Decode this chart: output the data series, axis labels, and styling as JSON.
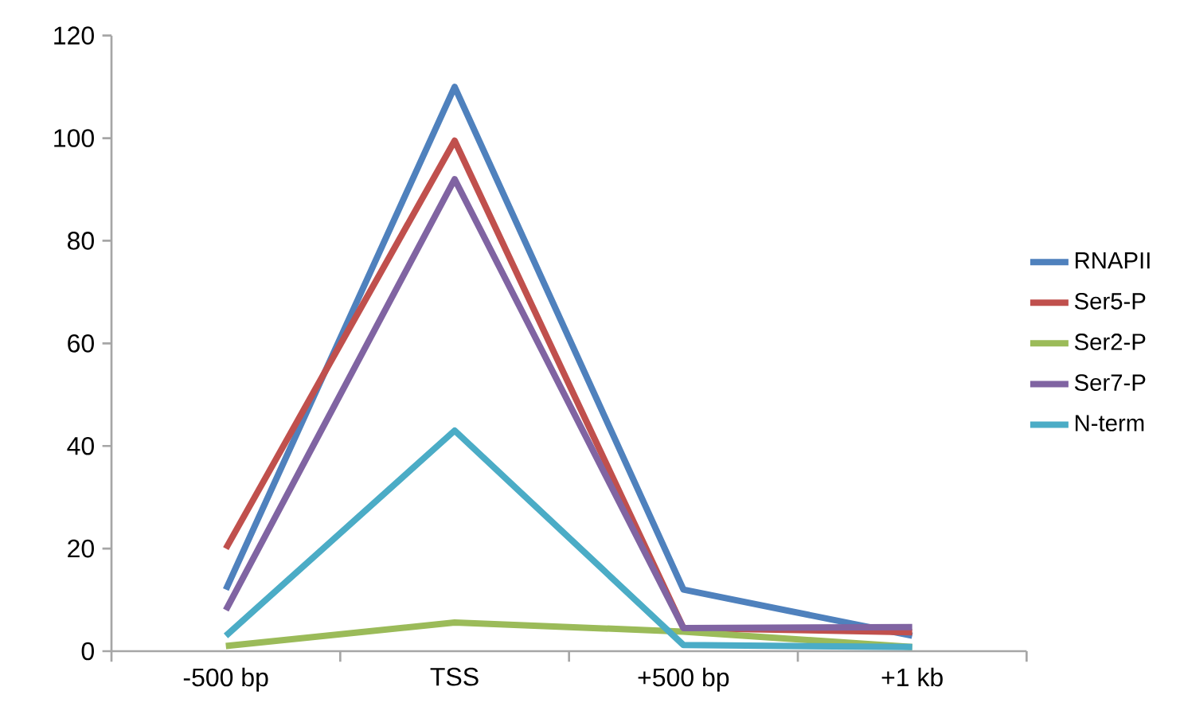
{
  "chart_data": {
    "type": "line",
    "categories": [
      "-500 bp",
      "TSS",
      "+500 bp",
      "+1 kb"
    ],
    "series": [
      {
        "name": "RNAPII",
        "color": "#4f81bd",
        "values": [
          12,
          110,
          12,
          3
        ]
      },
      {
        "name": "Ser5-P",
        "color": "#c0504d",
        "values": [
          20,
          99.5,
          4.5,
          3.7
        ]
      },
      {
        "name": "Ser2-P",
        "color": "#9bbb59",
        "values": [
          1,
          5.6,
          3.8,
          0.8
        ]
      },
      {
        "name": "Ser7-P",
        "color": "#8064a2",
        "values": [
          8,
          92,
          4.5,
          4.7
        ]
      },
      {
        "name": "N-term",
        "color": "#4bacc6",
        "values": [
          3,
          43,
          1.2,
          0.8
        ]
      }
    ],
    "ylim": [
      0,
      120
    ],
    "yticks": [
      0,
      20,
      40,
      60,
      80,
      100,
      120
    ],
    "grid": false,
    "legend": "right",
    "marker": "none",
    "line_style": "solid"
  }
}
